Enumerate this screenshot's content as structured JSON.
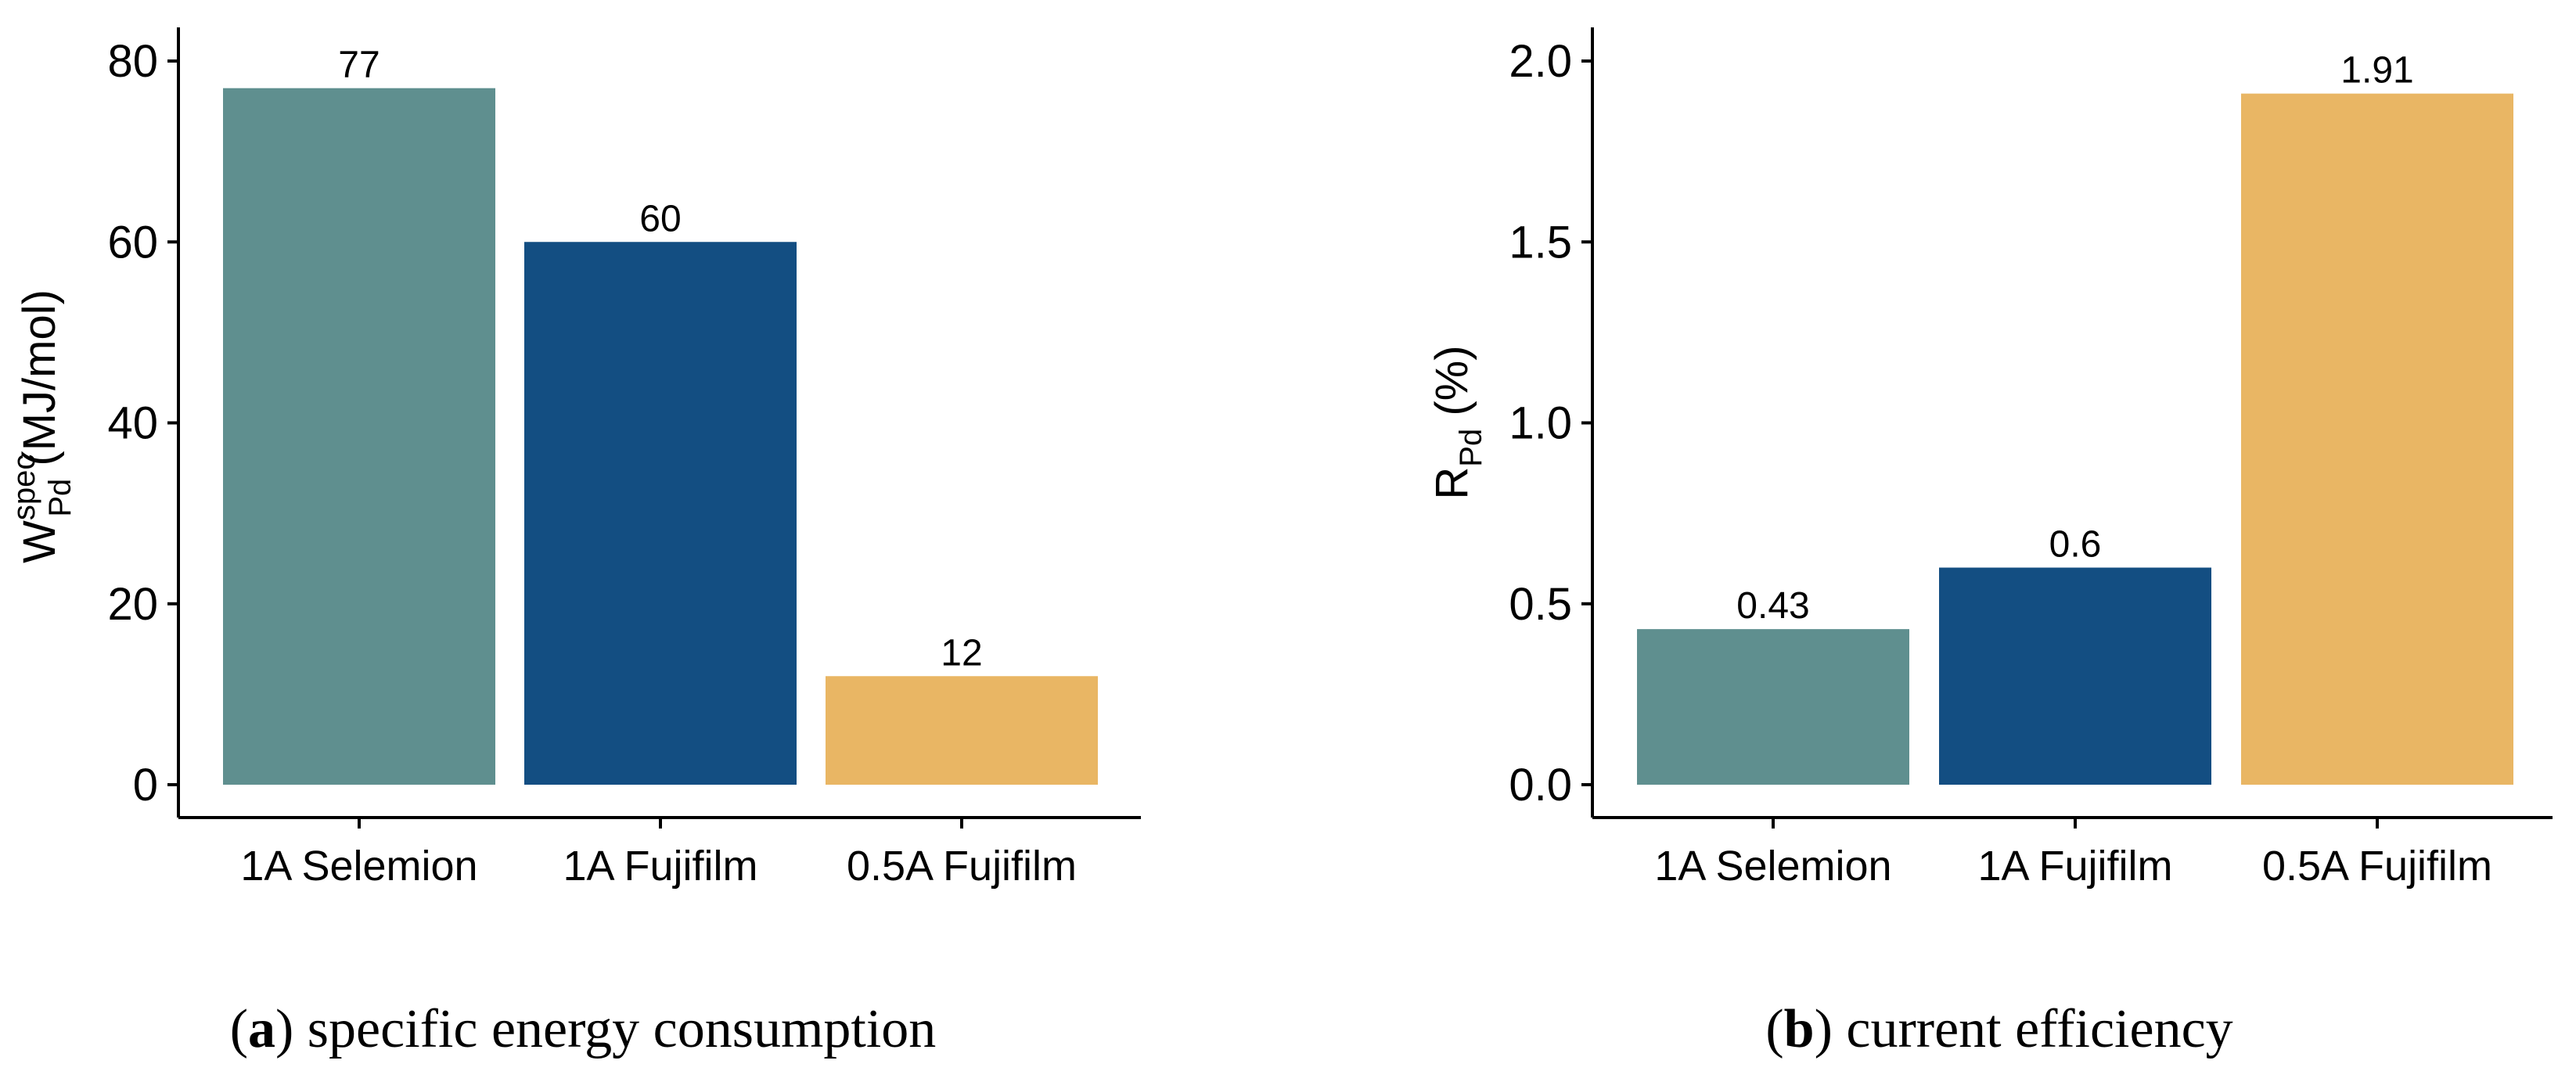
{
  "chart_data": [
    {
      "type": "bar",
      "categories": [
        "1A Selemion",
        "1A Fujifilm",
        "0.5A Fujifilm"
      ],
      "values": [
        77,
        60,
        12
      ],
      "value_labels": [
        "77",
        "60",
        "12"
      ],
      "colors": [
        "#5f8f8f",
        "#134e82",
        "#e9b664"
      ],
      "ylim": [
        0,
        80
      ],
      "yticks": [
        0,
        20,
        40,
        60,
        80
      ],
      "ytick_labels": [
        "0",
        "20",
        "40",
        "60",
        "80"
      ],
      "ylabel": {
        "base": "W",
        "sup": "spec",
        "sub": "Pd",
        "suffix": " (MJ/mol)"
      },
      "caption": {
        "letter": "a",
        "text": " specific energy consumption"
      }
    },
    {
      "type": "bar",
      "categories": [
        "1A Selemion",
        "1A Fujifilm",
        "0.5A Fujifilm"
      ],
      "values": [
        0.43,
        0.6,
        1.91
      ],
      "value_labels": [
        "0.43",
        "0.6",
        "1.91"
      ],
      "colors": [
        "#5f8f8f",
        "#134e82",
        "#e9b664"
      ],
      "ylim": [
        0,
        2.0
      ],
      "yticks": [
        0,
        0.5,
        1.0,
        1.5,
        2.0
      ],
      "ytick_labels": [
        "0.0",
        "0.5",
        "1.0",
        "1.5",
        "2.0"
      ],
      "ylabel": {
        "base": "R",
        "sup": "",
        "sub": "Pd",
        "suffix": " (%)"
      },
      "caption": {
        "letter": "b",
        "text": " current efficiency"
      }
    }
  ]
}
